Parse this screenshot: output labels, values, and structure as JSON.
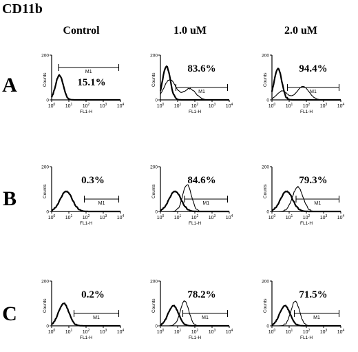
{
  "title": "CD11b",
  "columns": [
    "Control",
    "1.0 uM",
    "2.0 uM"
  ],
  "rows": [
    "A",
    "B",
    "C"
  ],
  "axis": {
    "ylabel": "Counts",
    "xlabel": "FL1-H",
    "y_ticks": [
      "0",
      "200"
    ],
    "x_ticks": [
      "10^0",
      "10^1",
      "10^2",
      "10^3",
      "10^4"
    ],
    "xscale": "log"
  },
  "gate_label": "M1",
  "chart_data": [
    {
      "type": "histogram",
      "row": "A",
      "column": "Control",
      "gated_percent": "15.1%",
      "gate_range_log": [
        0.4,
        3.9
      ],
      "series": [
        {
          "role": "control",
          "peak_log": 0.45,
          "width_log": 0.22,
          "height": 0.55
        }
      ]
    },
    {
      "type": "histogram",
      "row": "A",
      "column": "1.0 uM",
      "gated_percent": "83.6%",
      "gate_range_log": [
        0.9,
        3.9
      ],
      "series": [
        {
          "role": "control",
          "peak_log": 0.35,
          "width_log": 0.22,
          "height": 0.75
        },
        {
          "role": "treated",
          "peak_log": 0.55,
          "width_log": 0.35,
          "height": 0.45,
          "second_peak_log": 1.7,
          "second_height": 0.25
        }
      ]
    },
    {
      "type": "histogram",
      "row": "A",
      "column": "2.0 uM",
      "gated_percent": "94.4%",
      "gate_range_log": [
        0.9,
        3.9
      ],
      "series": [
        {
          "role": "control",
          "peak_log": 0.35,
          "width_log": 0.22,
          "height": 0.7
        },
        {
          "role": "treated",
          "peak_log": 0.6,
          "width_log": 0.3,
          "height": 0.2,
          "second_peak_log": 1.8,
          "second_height": 0.3
        }
      ]
    },
    {
      "type": "histogram",
      "row": "B",
      "column": "Control",
      "gated_percent": "0.3%",
      "gate_range_log": [
        1.9,
        3.9
      ],
      "series": [
        {
          "role": "control",
          "peak_log": 0.85,
          "width_log": 0.35,
          "height": 0.45
        }
      ]
    },
    {
      "type": "histogram",
      "row": "B",
      "column": "1.0 uM",
      "gated_percent": "84.6%",
      "gate_range_log": [
        1.4,
        3.9
      ],
      "series": [
        {
          "role": "control",
          "peak_log": 0.85,
          "width_log": 0.35,
          "height": 0.45
        },
        {
          "role": "treated",
          "peak_log": 1.55,
          "width_log": 0.25,
          "height": 0.6
        }
      ]
    },
    {
      "type": "histogram",
      "row": "B",
      "column": "2.0 uM",
      "gated_percent": "79.3%",
      "gate_range_log": [
        1.4,
        3.9
      ],
      "series": [
        {
          "role": "control",
          "peak_log": 0.85,
          "width_log": 0.35,
          "height": 0.45
        },
        {
          "role": "treated",
          "peak_log": 1.5,
          "width_log": 0.3,
          "height": 0.55
        }
      ]
    },
    {
      "type": "histogram",
      "row": "C",
      "column": "Control",
      "gated_percent": "0.2%",
      "gate_range_log": [
        1.3,
        3.9
      ],
      "series": [
        {
          "role": "control",
          "peak_log": 0.7,
          "width_log": 0.3,
          "height": 0.5
        }
      ]
    },
    {
      "type": "histogram",
      "row": "C",
      "column": "1.0 uM",
      "gated_percent": "78.2%",
      "gate_range_log": [
        1.3,
        3.9
      ],
      "series": [
        {
          "role": "control",
          "peak_log": 0.75,
          "width_log": 0.3,
          "height": 0.45
        },
        {
          "role": "treated",
          "peak_log": 1.4,
          "width_log": 0.25,
          "height": 0.55
        }
      ]
    },
    {
      "type": "histogram",
      "row": "C",
      "column": "2.0 uM",
      "gated_percent": "71.5%",
      "gate_range_log": [
        1.3,
        3.9
      ],
      "series": [
        {
          "role": "control",
          "peak_log": 0.75,
          "width_log": 0.3,
          "height": 0.45
        },
        {
          "role": "treated",
          "peak_log": 1.35,
          "width_log": 0.25,
          "height": 0.55
        }
      ]
    }
  ]
}
